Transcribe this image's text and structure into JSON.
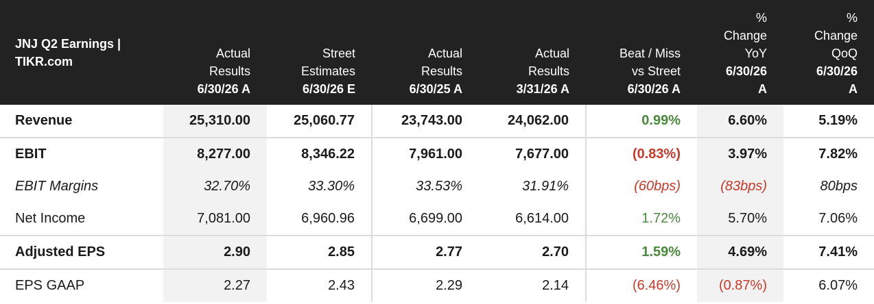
{
  "title": "JNJ Q2 Earnings | TIKR.com",
  "columns": [
    {
      "label": "Actual\nResults",
      "date": "6/30/26 A"
    },
    {
      "label": "Street\nEstimates",
      "date": "6/30/26 E"
    },
    {
      "label": "Actual\nResults",
      "date": "6/30/25 A"
    },
    {
      "label": "Actual\nResults",
      "date": "3/31/26 A"
    },
    {
      "label": "Beat / Miss\nvs Street",
      "date": "6/30/26 A"
    },
    {
      "label": "%\nChange\nYoY",
      "date": "6/30/26\nA"
    },
    {
      "label": "%\nChange\nQoQ",
      "date": "6/30/26\nA"
    }
  ],
  "rows": [
    {
      "label": "Revenue",
      "values": [
        "25,310.00",
        "25,060.77",
        "23,743.00",
        "24,062.00",
        "0.99%",
        "6.60%",
        "5.19%"
      ]
    },
    {
      "label": "EBIT",
      "values": [
        "8,277.00",
        "8,346.22",
        "7,961.00",
        "7,677.00",
        "(0.83%)",
        "3.97%",
        "7.82%"
      ]
    },
    {
      "label": "EBIT Margins",
      "values": [
        "32.70%",
        "33.30%",
        "33.53%",
        "31.91%",
        "(60bps)",
        "(83bps)",
        "80bps"
      ]
    },
    {
      "label": "Net Income",
      "values": [
        "7,081.00",
        "6,960.96",
        "6,699.00",
        "6,614.00",
        "1.72%",
        "5.70%",
        "7.06%"
      ]
    },
    {
      "label": "Adjusted EPS",
      "values": [
        "2.90",
        "2.85",
        "2.77",
        "2.70",
        "1.59%",
        "4.69%",
        "7.41%"
      ]
    },
    {
      "label": "EPS GAAP",
      "values": [
        "2.27",
        "2.43",
        "2.29",
        "2.14",
        "(6.46%)",
        "(0.87%)",
        "6.07%"
      ]
    }
  ],
  "colors": {
    "header_bg": "#222222",
    "positive": "#4a8a3c",
    "negative": "#c8392b",
    "shade": "#f2f2f2"
  }
}
